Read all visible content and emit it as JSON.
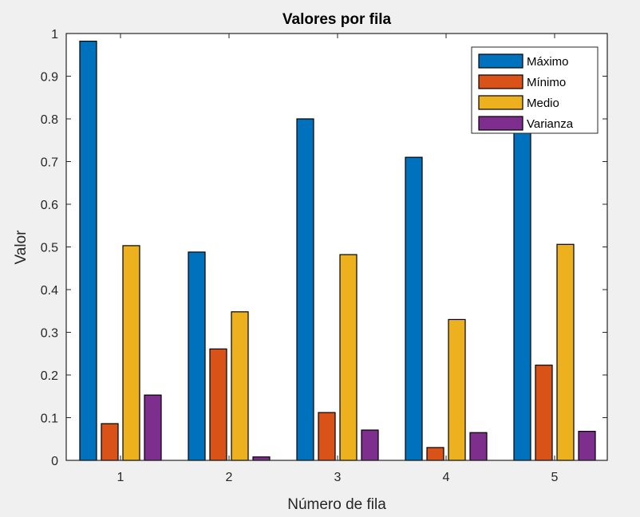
{
  "chart_data": {
    "type": "bar",
    "title": "Valores por fila",
    "xlabel": "Número de fila",
    "ylabel": "Valor",
    "categories": [
      "1",
      "2",
      "3",
      "4",
      "5"
    ],
    "ylim": [
      0,
      1
    ],
    "yticks": [
      "0",
      "0.1",
      "0.2",
      "0.3",
      "0.4",
      "0.5",
      "0.6",
      "0.7",
      "0.8",
      "0.9",
      "1"
    ],
    "grid": false,
    "legend_position": "top-right",
    "series": [
      {
        "name": "Máximo",
        "color": "#0072BD",
        "values": [
          0.982,
          0.488,
          0.8,
          0.71,
          0.785
        ]
      },
      {
        "name": "Mínimo",
        "color": "#D95319",
        "values": [
          0.086,
          0.261,
          0.112,
          0.03,
          0.223
        ]
      },
      {
        "name": "Medio",
        "color": "#EDB120",
        "values": [
          0.503,
          0.348,
          0.482,
          0.33,
          0.506
        ]
      },
      {
        "name": "Varianza",
        "color": "#7E2F8E",
        "values": [
          0.153,
          0.008,
          0.071,
          0.065,
          0.068
        ]
      }
    ]
  }
}
